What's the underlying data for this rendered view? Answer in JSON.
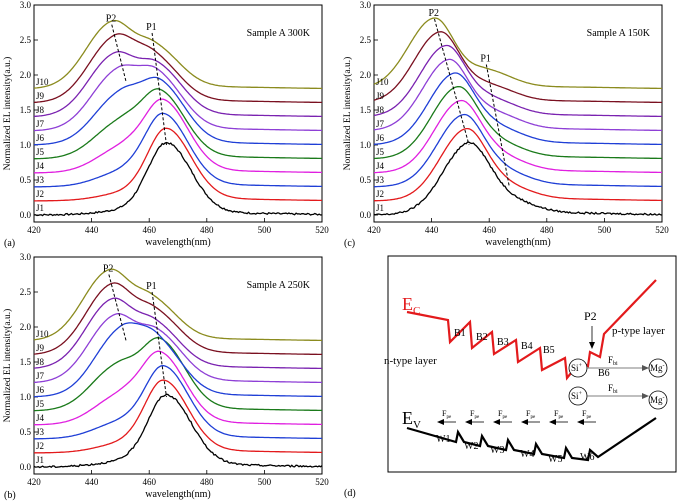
{
  "chart_data": [
    {
      "panel": "(a)",
      "type": "line",
      "annotation": "Sample A   300K",
      "xlabel": "wavelength(nm)",
      "ylabel": "Normalized EL intensity(a.u.)",
      "xlim": [
        420,
        520
      ],
      "ylim": [
        -0.1,
        3.0
      ],
      "xticks": [
        420,
        440,
        460,
        480,
        500,
        520
      ],
      "yticks": [
        0.0,
        0.5,
        1.0,
        1.5,
        2.0,
        2.5,
        3.0
      ],
      "ytick_labels": [
        "0.0",
        "0.5",
        "1.0",
        "1.5",
        "2.0",
        "2.5",
        "3.0"
      ],
      "peak_labels": [
        {
          "text": "P2",
          "path": [
            [
              447,
              2.72
            ],
            [
              452,
              1.9
            ]
          ]
        },
        {
          "text": "P1",
          "path": [
            [
              461,
              2.6
            ],
            [
              466,
              1.0
            ]
          ]
        }
      ],
      "series": [
        {
          "name": "J1",
          "color": "#000000",
          "offset": 0.0,
          "p1": [
            466,
            1.0
          ],
          "p2": [
            452,
            0.05
          ],
          "sp": 0.03
        },
        {
          "name": "J2",
          "color": "#e31a1c",
          "offset": 0.2,
          "p1": [
            466,
            1.0
          ],
          "p2": [
            452,
            0.1
          ],
          "sp": 0.03
        },
        {
          "name": "J3",
          "color": "#1f3fd6",
          "offset": 0.4,
          "p1": [
            465,
            1.0
          ],
          "p2": [
            451,
            0.2
          ],
          "sp": 0.03
        },
        {
          "name": "J4",
          "color": "#e020e0",
          "offset": 0.6,
          "p1": [
            465,
            0.98
          ],
          "p2": [
            451,
            0.35
          ],
          "sp": 0.03
        },
        {
          "name": "J5",
          "color": "#1a7a1a",
          "offset": 0.8,
          "p1": [
            464,
            0.9
          ],
          "p2": [
            450,
            0.5
          ],
          "sp": 0.03
        },
        {
          "name": "J6",
          "color": "#1f3fd6",
          "offset": 1.0,
          "p1": [
            464,
            0.82
          ],
          "p2": [
            450,
            0.7
          ],
          "sp": 0.03
        },
        {
          "name": "J7",
          "color": "#8e3fd6",
          "offset": 1.2,
          "p1": [
            463,
            0.75
          ],
          "p2": [
            449,
            0.82
          ],
          "sp": 0.03
        },
        {
          "name": "J8",
          "color": "#7a22b0",
          "offset": 1.4,
          "p1": [
            463,
            0.68
          ],
          "p2": [
            448,
            0.86
          ],
          "sp": 0.03
        },
        {
          "name": "J9",
          "color": "#7a1020",
          "offset": 1.6,
          "p1": [
            462,
            0.6
          ],
          "p2": [
            448,
            0.9
          ],
          "sp": 0.03
        },
        {
          "name": "J10",
          "color": "#8b8b1e",
          "offset": 1.8,
          "p1": [
            462,
            0.56
          ],
          "p2": [
            447,
            0.92
          ],
          "sp": 0.03
        }
      ]
    },
    {
      "panel": "(c)",
      "type": "line",
      "annotation": "Sample A   150K",
      "xlabel": "wavelength(nm)",
      "ylabel": "Normalized EL intensity(a.u.)",
      "xlim": [
        420,
        520
      ],
      "ylim": [
        -0.1,
        3.0
      ],
      "xticks": [
        420,
        440,
        460,
        480,
        500,
        520
      ],
      "yticks": [
        0.0,
        0.5,
        1.0,
        1.5,
        2.0,
        2.5,
        3.0
      ],
      "ytick_labels": [
        "0.0",
        "0.5",
        "1.0",
        "1.5",
        "2.0",
        "2.5",
        "3.0"
      ],
      "peak_labels": [
        {
          "text": "P2",
          "path": [
            [
              441,
              2.8
            ],
            [
              453,
              1.0
            ]
          ]
        },
        {
          "text": "P1",
          "path": [
            [
              459,
              2.15
            ],
            [
              467,
              0.4
            ]
          ]
        }
      ],
      "series": [
        {
          "name": "J1",
          "color": "#000000",
          "offset": 0.0,
          "p2": [
            453,
            1.0
          ],
          "p1": [
            467,
            0.18
          ],
          "sp": 0.03
        },
        {
          "name": "J2",
          "color": "#e31a1c",
          "offset": 0.2,
          "p2": [
            452,
            1.0
          ],
          "p1": [
            466,
            0.18
          ],
          "sp": 0.03
        },
        {
          "name": "J3",
          "color": "#1f3fd6",
          "offset": 0.4,
          "p2": [
            451,
            1.0
          ],
          "p1": [
            465,
            0.19
          ],
          "sp": 0.03
        },
        {
          "name": "J4",
          "color": "#e020e0",
          "offset": 0.6,
          "p2": [
            450,
            1.0
          ],
          "p1": [
            464,
            0.2
          ],
          "sp": 0.03
        },
        {
          "name": "J5",
          "color": "#1a7a1a",
          "offset": 0.8,
          "p2": [
            449,
            1.0
          ],
          "p1": [
            463,
            0.2
          ],
          "sp": 0.03
        },
        {
          "name": "J6",
          "color": "#1f3fd6",
          "offset": 1.0,
          "p2": [
            448,
            1.0
          ],
          "p1": [
            463,
            0.21
          ],
          "sp": 0.03
        },
        {
          "name": "J7",
          "color": "#8e3fd6",
          "offset": 1.2,
          "p2": [
            446,
            1.0
          ],
          "p1": [
            462,
            0.22
          ],
          "sp": 0.03
        },
        {
          "name": "J8",
          "color": "#7a22b0",
          "offset": 1.4,
          "p2": [
            445,
            1.0
          ],
          "p1": [
            461,
            0.22
          ],
          "sp": 0.03
        },
        {
          "name": "J9",
          "color": "#7a1020",
          "offset": 1.6,
          "p2": [
            443,
            1.0
          ],
          "p1": [
            460,
            0.22
          ],
          "sp": 0.03
        },
        {
          "name": "J10",
          "color": "#8b8b1e",
          "offset": 1.8,
          "p2": [
            441,
            1.0
          ],
          "p1": [
            459,
            0.24
          ],
          "sp": 0.03
        }
      ]
    },
    {
      "panel": "(b)",
      "type": "line",
      "annotation": "Sample A   250K",
      "xlabel": "wavelength(nm)",
      "ylabel": "Normalized EL intensity(a.u.)",
      "xlim": [
        420,
        520
      ],
      "ylim": [
        -0.1,
        3.0
      ],
      "xticks": [
        420,
        440,
        460,
        480,
        500,
        520
      ],
      "yticks": [
        0.0,
        0.5,
        1.0,
        1.5,
        2.0,
        2.5,
        3.0
      ],
      "ytick_labels": [
        "0.0",
        "0.5",
        "1.0",
        "1.5",
        "2.0",
        "2.5",
        "3.0"
      ],
      "peak_labels": [
        {
          "text": "P2",
          "path": [
            [
              446,
              2.75
            ],
            [
              452,
              1.8
            ]
          ]
        },
        {
          "text": "P1",
          "path": [
            [
              461,
              2.5
            ],
            [
              466,
              1.0
            ]
          ]
        }
      ],
      "series": [
        {
          "name": "J1",
          "color": "#000000",
          "offset": 0.0,
          "p1": [
            466,
            1.0
          ],
          "p2": [
            451,
            0.06
          ],
          "sp": 0.03
        },
        {
          "name": "J2",
          "color": "#e31a1c",
          "offset": 0.2,
          "p1": [
            465,
            1.0
          ],
          "p2": [
            451,
            0.12
          ],
          "sp": 0.03
        },
        {
          "name": "J3",
          "color": "#1f3fd6",
          "offset": 0.4,
          "p1": [
            465,
            1.0
          ],
          "p2": [
            450,
            0.22
          ],
          "sp": 0.03
        },
        {
          "name": "J4",
          "color": "#e020e0",
          "offset": 0.6,
          "p1": [
            464,
            0.97
          ],
          "p2": [
            450,
            0.4
          ],
          "sp": 0.03
        },
        {
          "name": "J5",
          "color": "#1a7a1a",
          "offset": 0.8,
          "p1": [
            464,
            0.95
          ],
          "p2": [
            449,
            0.62
          ],
          "sp": 0.03
        },
        {
          "name": "J6",
          "color": "#1f3fd6",
          "offset": 1.0,
          "p1": [
            463,
            0.72
          ],
          "p2": [
            450,
            0.9
          ],
          "sp": 0.03
        },
        {
          "name": "J7",
          "color": "#8e3fd6",
          "offset": 1.2,
          "p1": [
            463,
            0.66
          ],
          "p2": [
            448,
            0.92
          ],
          "sp": 0.03
        },
        {
          "name": "J8",
          "color": "#7a22b0",
          "offset": 1.4,
          "p1": [
            462,
            0.6
          ],
          "p2": [
            447,
            0.95
          ],
          "sp": 0.03
        },
        {
          "name": "J9",
          "color": "#7a1020",
          "offset": 1.6,
          "p1": [
            462,
            0.57
          ],
          "p2": [
            447,
            0.97
          ],
          "sp": 0.03
        },
        {
          "name": "J10",
          "color": "#8b8b1e",
          "offset": 1.8,
          "p1": [
            461,
            0.55
          ],
          "p2": [
            446,
            0.97
          ],
          "sp": 0.03
        }
      ]
    }
  ],
  "panel_d": {
    "label": "(d)",
    "ec": "E",
    "ec_sub": "C",
    "ev": "E",
    "ev_sub": "V",
    "n_layer": "n-type layer",
    "p_layer": "p-type layer",
    "p2": "P2",
    "barriers": [
      "B1",
      "B2",
      "B3",
      "B4",
      "B5",
      "B6"
    ],
    "wells": [
      "W1",
      "W2",
      "W3",
      "W4",
      "W5",
      "W6"
    ],
    "fpe": "F",
    "fpe_sub": "pe",
    "fbi": "F",
    "fbi_sub": "bi",
    "si": "Si",
    "si_sup": "+",
    "mg": "Mg",
    "mg_sup": "-",
    "colors": {
      "ec": "#e31a1c",
      "ev": "#000000"
    }
  }
}
